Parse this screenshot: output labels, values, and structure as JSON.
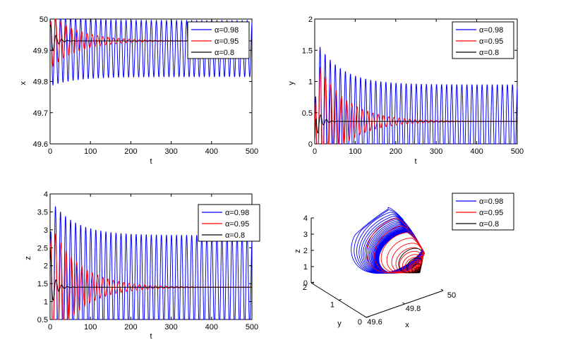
{
  "colors": {
    "a098": "#0000ff",
    "a095": "#ff0000",
    "a08": "#000000"
  },
  "legend": [
    "α=0.98",
    "α=0.95",
    "α=0.8"
  ],
  "chart_data": [
    {
      "id": "x",
      "type": "line",
      "ylabel": "x",
      "xlabel": "t",
      "xlim": [
        0,
        500
      ],
      "ylim": [
        49.6,
        50
      ],
      "xticks": [
        "0",
        "100",
        "200",
        "300",
        "400",
        "500"
      ],
      "yticks": [
        "49.6",
        "49.7",
        "49.8",
        "49.9",
        "50"
      ],
      "legend_loc": "top-right",
      "series": [
        {
          "name": "α=0.98",
          "period": 12.5,
          "eq": 49.905,
          "amp0": 0.12,
          "ampInf": 0.09,
          "tau": 60,
          "init": 49.98
        },
        {
          "name": "α=0.95",
          "period": 13,
          "eq": 49.93,
          "amp0": 0.09,
          "ampInf": 0.0,
          "tau": 70,
          "init": 49.98
        },
        {
          "name": "α=0.8",
          "period": 14,
          "eq": 49.93,
          "amp0": 0.06,
          "ampInf": 0.0,
          "tau": 12,
          "init": 49.98
        }
      ]
    },
    {
      "id": "y",
      "type": "line",
      "ylabel": "y",
      "xlabel": "t",
      "xlim": [
        0,
        500
      ],
      "ylim": [
        0,
        2
      ],
      "xticks": [
        "0",
        "100",
        "200",
        "300",
        "400",
        "500"
      ],
      "yticks": [
        "0",
        "0.5",
        "1",
        "1.5",
        "2"
      ],
      "legend_loc": "top-right",
      "series": [
        {
          "name": "α=0.98",
          "period": 12.5,
          "eq": 0.35,
          "amp0": 1.35,
          "ampInf": 0.6,
          "tau": 60,
          "init": 0.05
        },
        {
          "name": "α=0.95",
          "period": 13,
          "eq": 0.36,
          "amp0": 1.05,
          "ampInf": 0.0,
          "tau": 70,
          "init": 0.05
        },
        {
          "name": "α=0.8",
          "period": 14,
          "eq": 0.36,
          "amp0": 0.35,
          "ampInf": 0.0,
          "tau": 12,
          "init": 0.05
        }
      ]
    },
    {
      "id": "z",
      "type": "line",
      "ylabel": "z",
      "xlabel": "t",
      "xlim": [
        0,
        500
      ],
      "ylim": [
        0.5,
        4
      ],
      "xticks": [
        "0",
        "100",
        "200",
        "300",
        "400",
        "500"
      ],
      "yticks": [
        "0.5",
        "1",
        "1.5",
        "2",
        "2.5",
        "3",
        "3.5",
        "4"
      ],
      "legend_loc": "top-right",
      "series": [
        {
          "name": "α=0.98",
          "period": 12.5,
          "eq": 1.55,
          "amp0": 2.3,
          "ampInf": 1.3,
          "tau": 60,
          "init": 2.5
        },
        {
          "name": "α=0.95",
          "period": 13,
          "eq": 1.4,
          "amp0": 1.8,
          "ampInf": 0.0,
          "tau": 70,
          "init": 2.5
        },
        {
          "name": "α=0.8",
          "period": 14,
          "eq": 1.4,
          "amp0": 0.7,
          "ampInf": 0.0,
          "tau": 12,
          "init": 2.5
        }
      ]
    },
    {
      "id": "phase",
      "type": "line3d",
      "xlabel": "x",
      "ylabel": "y",
      "zlabel": "z",
      "xlim": [
        49.6,
        50
      ],
      "ylim": [
        0,
        2
      ],
      "zlim": [
        0,
        4
      ],
      "xticks": [
        "49.6",
        "49.8",
        "50"
      ],
      "yticks": [
        "0",
        "1",
        "2"
      ],
      "zticks": [
        "0",
        "1",
        "2",
        "3",
        "4"
      ],
      "legend_loc": "top-right",
      "center": {
        "x": 49.93,
        "y": 0.36,
        "z": 1.0
      }
    }
  ]
}
